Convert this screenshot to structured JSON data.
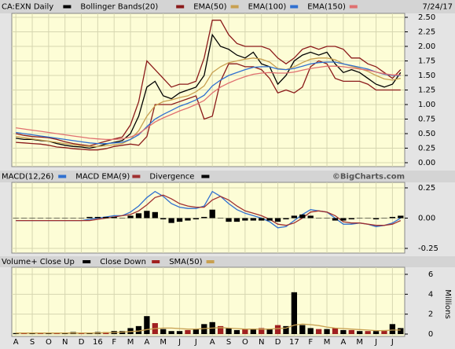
{
  "chart_data": [
    {
      "type": "line",
      "title": "CA:EXN Daily",
      "date": "7/24/17",
      "ylim": [
        0,
        2.5
      ],
      "yticks": [
        {
          "value": 0,
          "label": "0.00"
        },
        {
          "value": 0.25,
          "label": "0.25"
        },
        {
          "value": 0.5,
          "label": "0.50"
        },
        {
          "value": 0.75,
          "label": "0.75"
        },
        {
          "value": 1,
          "label": "1.00"
        },
        {
          "value": 1.25,
          "label": "1.25"
        },
        {
          "value": 1.5,
          "label": "1.50"
        },
        {
          "value": 1.75,
          "label": "1.75"
        },
        {
          "value": 2,
          "label": "2.00"
        },
        {
          "value": 2.25,
          "label": "2.25"
        },
        {
          "value": 2.5,
          "label": "2.50"
        }
      ],
      "series": [
        {
          "name": "CA:EXN Daily",
          "color": "#000000",
          "values": [
            0.42,
            0.4,
            0.4,
            0.38,
            0.37,
            0.33,
            0.3,
            0.28,
            0.27,
            0.25,
            0.28,
            0.32,
            0.35,
            0.38,
            0.5,
            0.8,
            1.3,
            1.4,
            1.15,
            1.1,
            1.2,
            1.25,
            1.3,
            1.5,
            2.2,
            2.0,
            1.95,
            1.85,
            1.8,
            1.9,
            1.7,
            1.65,
            1.35,
            1.5,
            1.75,
            1.85,
            1.9,
            1.85,
            1.9,
            1.7,
            1.55,
            1.6,
            1.55,
            1.45,
            1.35,
            1.3,
            1.35,
            1.55
          ]
        },
        {
          "name": "Bollinger Bands(20)",
          "color": "#8b1a1a",
          "upper": [
            0.5,
            0.47,
            0.45,
            0.44,
            0.43,
            0.4,
            0.36,
            0.33,
            0.31,
            0.29,
            0.33,
            0.37,
            0.41,
            0.44,
            0.65,
            1.05,
            1.75,
            1.6,
            1.45,
            1.3,
            1.35,
            1.35,
            1.4,
            1.8,
            2.45,
            2.45,
            2.2,
            2.05,
            2.0,
            2.0,
            2.0,
            1.95,
            1.8,
            1.7,
            1.8,
            1.95,
            2.0,
            1.95,
            2.0,
            2.0,
            1.95,
            1.8,
            1.8,
            1.7,
            1.65,
            1.55,
            1.45,
            1.6
          ],
          "lower": [
            0.35,
            0.34,
            0.33,
            0.32,
            0.3,
            0.27,
            0.26,
            0.24,
            0.23,
            0.22,
            0.22,
            0.24,
            0.28,
            0.3,
            0.32,
            0.3,
            0.45,
            1.0,
            1.0,
            1.0,
            1.05,
            1.1,
            1.15,
            0.75,
            0.8,
            1.4,
            1.7,
            1.7,
            1.65,
            1.65,
            1.6,
            1.45,
            1.2,
            1.25,
            1.2,
            1.3,
            1.65,
            1.75,
            1.7,
            1.45,
            1.4,
            1.4,
            1.4,
            1.35,
            1.25,
            1.25,
            1.25,
            1.25
          ]
        },
        {
          "name": "EMA(50)",
          "color": "#c8a050",
          "values": [
            0.45,
            0.43,
            0.41,
            0.39,
            0.37,
            0.35,
            0.33,
            0.31,
            0.29,
            0.28,
            0.28,
            0.29,
            0.31,
            0.33,
            0.4,
            0.55,
            0.8,
            0.98,
            1.05,
            1.08,
            1.12,
            1.15,
            1.22,
            1.32,
            1.55,
            1.65,
            1.72,
            1.75,
            1.78,
            1.8,
            1.78,
            1.73,
            1.62,
            1.6,
            1.65,
            1.72,
            1.78,
            1.8,
            1.8,
            1.77,
            1.7,
            1.66,
            1.62,
            1.57,
            1.5,
            1.44,
            1.42,
            1.45
          ]
        },
        {
          "name": "EMA(100)",
          "color": "#3070d0",
          "values": [
            0.52,
            0.5,
            0.48,
            0.46,
            0.44,
            0.42,
            0.4,
            0.38,
            0.36,
            0.34,
            0.33,
            0.33,
            0.34,
            0.35,
            0.4,
            0.48,
            0.62,
            0.75,
            0.83,
            0.9,
            0.97,
            1.02,
            1.08,
            1.16,
            1.32,
            1.42,
            1.5,
            1.55,
            1.6,
            1.64,
            1.65,
            1.65,
            1.61,
            1.6,
            1.62,
            1.66,
            1.7,
            1.72,
            1.73,
            1.73,
            1.7,
            1.67,
            1.64,
            1.61,
            1.56,
            1.52,
            1.5,
            1.5
          ]
        },
        {
          "name": "EMA(150)",
          "color": "#e07070",
          "values": [
            0.6,
            0.58,
            0.56,
            0.54,
            0.52,
            0.5,
            0.48,
            0.46,
            0.44,
            0.42,
            0.41,
            0.4,
            0.4,
            0.41,
            0.44,
            0.5,
            0.6,
            0.7,
            0.77,
            0.83,
            0.89,
            0.94,
            1.0,
            1.07,
            1.2,
            1.3,
            1.37,
            1.43,
            1.48,
            1.52,
            1.54,
            1.55,
            1.54,
            1.54,
            1.56,
            1.59,
            1.62,
            1.64,
            1.66,
            1.66,
            1.65,
            1.63,
            1.61,
            1.59,
            1.56,
            1.53,
            1.51,
            1.51
          ]
        }
      ]
    },
    {
      "type": "line",
      "watermark": "©BigCharts.com",
      "ylim": [
        -0.25,
        0.25
      ],
      "yticks": [
        {
          "value": -0.25,
          "label": "-0.25"
        },
        {
          "value": 0,
          "label": "0.00"
        },
        {
          "value": 0.25,
          "label": "0.25"
        }
      ],
      "series": [
        {
          "name": "MACD(12,26)",
          "color": "#3070d0",
          "kind": "line",
          "values": [
            -0.02,
            -0.02,
            -0.02,
            -0.02,
            -0.02,
            -0.02,
            -0.02,
            -0.02,
            -0.02,
            -0.01,
            0.0,
            0.01,
            0.02,
            0.02,
            0.05,
            0.1,
            0.17,
            0.22,
            0.18,
            0.12,
            0.09,
            0.08,
            0.08,
            0.1,
            0.22,
            0.18,
            0.12,
            0.07,
            0.04,
            0.02,
            0.0,
            -0.03,
            -0.08,
            -0.07,
            -0.02,
            0.03,
            0.07,
            0.06,
            0.05,
            0.0,
            -0.05,
            -0.05,
            -0.04,
            -0.05,
            -0.07,
            -0.06,
            -0.04,
            0.0
          ]
        },
        {
          "name": "MACD EMA(9)",
          "color": "#a03030",
          "kind": "line",
          "values": [
            -0.02,
            -0.02,
            -0.02,
            -0.02,
            -0.02,
            -0.02,
            -0.02,
            -0.02,
            -0.02,
            -0.02,
            -0.01,
            0.0,
            0.01,
            0.02,
            0.03,
            0.06,
            0.11,
            0.17,
            0.19,
            0.16,
            0.12,
            0.1,
            0.09,
            0.09,
            0.15,
            0.18,
            0.15,
            0.1,
            0.06,
            0.04,
            0.02,
            -0.01,
            -0.05,
            -0.06,
            -0.04,
            0.0,
            0.05,
            0.06,
            0.05,
            0.02,
            -0.03,
            -0.04,
            -0.04,
            -0.05,
            -0.06,
            -0.06,
            -0.05,
            -0.02
          ]
        },
        {
          "name": "Divergence",
          "color": "#000000",
          "kind": "bar",
          "values": [
            0,
            0,
            0,
            0,
            0,
            0,
            0,
            0,
            0,
            0.01,
            0.01,
            0.01,
            0.01,
            0,
            0.02,
            0.04,
            0.06,
            0.05,
            -0.01,
            -0.04,
            -0.03,
            -0.02,
            -0.01,
            0.01,
            0.07,
            0,
            -0.03,
            -0.03,
            -0.02,
            -0.02,
            -0.02,
            -0.02,
            -0.03,
            -0.01,
            0.02,
            0.03,
            0.02,
            0,
            0,
            -0.02,
            -0.02,
            -0.01,
            0,
            0,
            -0.01,
            0,
            0.01,
            0.02
          ]
        }
      ]
    },
    {
      "type": "bar",
      "y_label": "Millions",
      "ylim": [
        0,
        6
      ],
      "yticks": [
        0,
        2,
        4,
        6
      ],
      "x_labels": [
        "A",
        "S",
        "O",
        "N",
        "D",
        "16",
        "F",
        "M",
        "A",
        "M",
        "J",
        "J",
        "A",
        "S",
        "O",
        "N",
        "D",
        "17",
        "F",
        "M",
        "A",
        "M",
        "J",
        "J"
      ],
      "series": [
        {
          "name": "Volume+ Close Up",
          "color": "#000000",
          "kind": "bar",
          "values": [
            0.1,
            null,
            0.1,
            null,
            0.1,
            null,
            0.1,
            0.2,
            null,
            0.1,
            0.2,
            null,
            0.3,
            0.3,
            0.6,
            0.8,
            1.8,
            null,
            0.5,
            0.3,
            0.3,
            null,
            0.5,
            1.0,
            1.2,
            null,
            0.6,
            0.4,
            null,
            0.5,
            null,
            0.5,
            null,
            0.8,
            4.2,
            0.9,
            0.6,
            null,
            0.5,
            null,
            0.4,
            null,
            0.3,
            null,
            0.3,
            null,
            1.0,
            0.6
          ]
        },
        {
          "name": "Close Down",
          "color": "#a02020",
          "kind": "bar",
          "values": [
            null,
            0.1,
            null,
            0.1,
            null,
            0.1,
            null,
            null,
            0.1,
            null,
            null,
            0.2,
            null,
            null,
            null,
            null,
            null,
            1.1,
            null,
            null,
            null,
            0.4,
            null,
            null,
            null,
            0.8,
            null,
            null,
            0.5,
            null,
            0.6,
            null,
            0.9,
            null,
            null,
            null,
            null,
            0.5,
            null,
            0.6,
            null,
            0.4,
            null,
            0.3,
            null,
            0.4,
            null,
            null
          ]
        },
        {
          "name": "SMA(50)",
          "color": "#c8a050",
          "kind": "line",
          "values": [
            0.1,
            0.1,
            0.1,
            0.1,
            0.1,
            0.1,
            0.1,
            0.1,
            0.1,
            0.1,
            0.1,
            0.15,
            0.15,
            0.2,
            0.25,
            0.3,
            0.45,
            0.55,
            0.6,
            0.6,
            0.55,
            0.5,
            0.5,
            0.55,
            0.6,
            0.65,
            0.6,
            0.55,
            0.5,
            0.5,
            0.5,
            0.5,
            0.55,
            0.6,
            0.9,
            1.0,
            0.95,
            0.85,
            0.7,
            0.6,
            0.55,
            0.5,
            0.45,
            0.4,
            0.35,
            0.35,
            0.4,
            0.4
          ]
        }
      ]
    }
  ]
}
